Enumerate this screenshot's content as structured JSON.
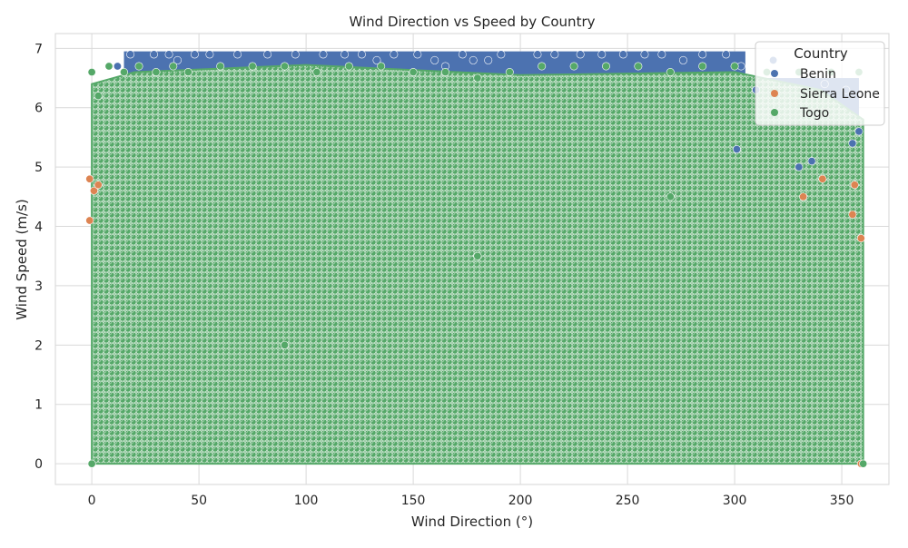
{
  "chart_data": {
    "type": "scatter",
    "title": "Wind Direction vs Speed by Country",
    "xlabel": "Wind Direction (°)",
    "ylabel": "Wind Speed (m/s)",
    "xlim": [
      -17,
      372
    ],
    "ylim": [
      -0.35,
      7.25
    ],
    "x_ticks": [
      0,
      50,
      100,
      150,
      200,
      250,
      300,
      350
    ],
    "y_ticks": [
      0,
      1,
      2,
      3,
      4,
      5,
      6,
      7
    ],
    "grid": true,
    "legend": {
      "title": "Country",
      "placement": "top-right",
      "entries": [
        "Benin",
        "Sierra Leone",
        "Togo"
      ]
    },
    "series": [
      {
        "name": "Benin",
        "color": "#4c72b0",
        "points": [
          [
            18,
            6.9
          ],
          [
            29,
            6.9
          ],
          [
            36,
            6.9
          ],
          [
            48,
            6.9
          ],
          [
            55,
            6.9
          ],
          [
            68,
            6.9
          ],
          [
            82,
            6.9
          ],
          [
            95,
            6.9
          ],
          [
            108,
            6.9
          ],
          [
            118,
            6.9
          ],
          [
            126,
            6.9
          ],
          [
            141,
            6.9
          ],
          [
            152,
            6.9
          ],
          [
            160,
            6.8
          ],
          [
            173,
            6.9
          ],
          [
            178,
            6.8
          ],
          [
            185,
            6.8
          ],
          [
            191,
            6.9
          ],
          [
            208,
            6.9
          ],
          [
            216,
            6.9
          ],
          [
            228,
            6.9
          ],
          [
            238,
            6.9
          ],
          [
            248,
            6.9
          ],
          [
            258,
            6.9
          ],
          [
            266,
            6.9
          ],
          [
            276,
            6.8
          ],
          [
            285,
            6.9
          ],
          [
            296,
            6.9
          ],
          [
            303,
            6.7
          ],
          [
            318,
            6.8
          ],
          [
            342,
            6.4
          ],
          [
            352,
            6.3
          ],
          [
            330,
            5.0
          ],
          [
            336,
            5.1
          ],
          [
            358,
            5.6
          ],
          [
            301,
            5.3
          ],
          [
            355,
            5.4
          ],
          [
            310,
            6.3
          ],
          [
            12,
            6.7
          ],
          [
            40,
            6.8
          ],
          [
            133,
            6.8
          ],
          [
            165,
            6.7
          ]
        ]
      },
      {
        "name": "Sierra Leone",
        "color": "#dd8452",
        "points": [
          [
            -1,
            4.8
          ],
          [
            1,
            4.6
          ],
          [
            3,
            4.7
          ],
          [
            -1,
            4.1
          ],
          [
            332,
            4.5
          ],
          [
            341,
            4.8
          ],
          [
            355,
            4.2
          ],
          [
            359,
            3.8
          ],
          [
            359,
            0.0
          ],
          [
            356,
            4.7
          ]
        ]
      },
      {
        "name": "Togo",
        "color": "#55a868",
        "points": [
          [
            0,
            0.0
          ],
          [
            0,
            6.6
          ],
          [
            3,
            6.2
          ],
          [
            8,
            6.7
          ],
          [
            15,
            6.6
          ],
          [
            22,
            6.7
          ],
          [
            30,
            6.6
          ],
          [
            38,
            6.7
          ],
          [
            45,
            6.6
          ],
          [
            60,
            6.7
          ],
          [
            75,
            6.7
          ],
          [
            90,
            6.7
          ],
          [
            105,
            6.6
          ],
          [
            120,
            6.7
          ],
          [
            135,
            6.7
          ],
          [
            150,
            6.6
          ],
          [
            165,
            6.6
          ],
          [
            180,
            6.5
          ],
          [
            195,
            6.6
          ],
          [
            210,
            6.7
          ],
          [
            225,
            6.7
          ],
          [
            240,
            6.7
          ],
          [
            255,
            6.7
          ],
          [
            270,
            6.6
          ],
          [
            285,
            6.7
          ],
          [
            300,
            6.7
          ],
          [
            315,
            6.6
          ],
          [
            330,
            6.6
          ],
          [
            345,
            6.6
          ],
          [
            358,
            6.6
          ],
          [
            180,
            3.5
          ],
          [
            90,
            2.0
          ],
          [
            270,
            4.5
          ],
          [
            360,
            0.0
          ]
        ]
      }
    ]
  }
}
